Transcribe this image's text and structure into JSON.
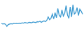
{
  "chart_data": {
    "type": "line",
    "values": [
      22,
      20,
      21,
      19,
      12,
      18,
      20,
      21,
      20,
      22,
      21,
      22,
      21,
      23,
      22,
      24,
      23,
      25,
      24,
      23,
      26,
      25,
      24,
      27,
      26,
      25,
      28,
      27,
      30,
      26,
      29,
      31,
      28,
      33,
      45,
      35,
      40,
      55,
      38,
      60,
      42,
      75,
      50,
      45,
      70,
      48,
      58,
      85,
      52,
      40,
      80,
      45,
      88,
      55,
      60,
      78,
      50,
      72,
      65,
      55
    ],
    "color": "#3d9ad1",
    "ylim": [
      0,
      100
    ],
    "tick_labels": false,
    "grid": false
  }
}
